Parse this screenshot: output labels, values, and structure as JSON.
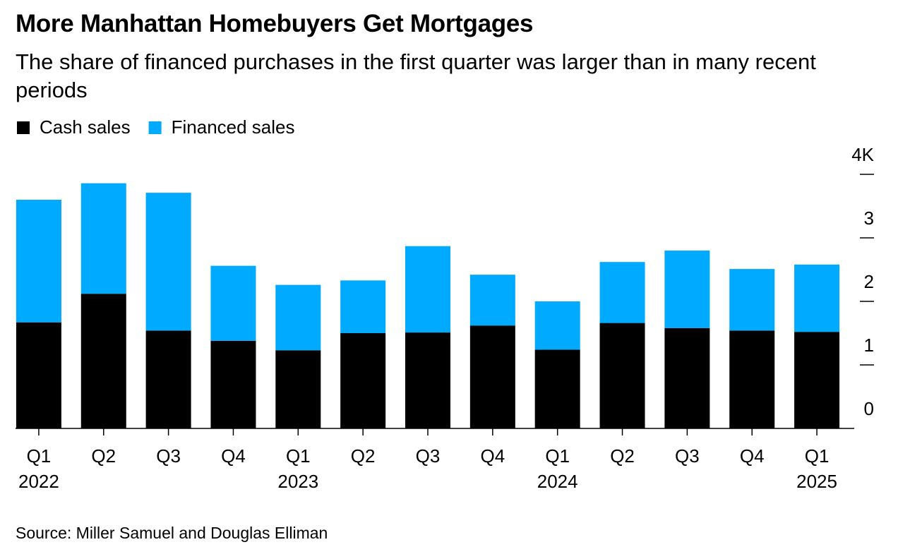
{
  "chart_data": {
    "type": "stacked_bar",
    "title": "More Manhattan Homebuyers Get Mortgages",
    "subtitle": "The share of financed purchases in the first quarter was larger than in many recent periods",
    "source": "Source: Miller Samuel and Douglas Elliman",
    "categories": [
      "Q1",
      "Q2",
      "Q3",
      "Q4",
      "Q1",
      "Q2",
      "Q3",
      "Q4",
      "Q1",
      "Q2",
      "Q3",
      "Q4",
      "Q1"
    ],
    "years": [
      "2022",
      null,
      null,
      null,
      "2023",
      null,
      null,
      null,
      "2024",
      null,
      null,
      null,
      "2025"
    ],
    "series": [
      {
        "name": "Cash sales",
        "color": "#000000",
        "values": [
          1.67,
          2.12,
          1.54,
          1.38,
          1.23,
          1.5,
          1.51,
          1.62,
          1.24,
          1.66,
          1.58,
          1.54,
          1.52
        ]
      },
      {
        "name": "Financed sales",
        "color": "#00aaff",
        "values": [
          1.93,
          1.74,
          2.17,
          1.18,
          1.03,
          0.83,
          1.36,
          0.8,
          0.76,
          0.96,
          1.22,
          0.97,
          1.06
        ]
      }
    ],
    "ylim": [
      0,
      4.3
    ],
    "yticks": [
      0,
      1,
      2,
      3,
      {
        "value": 4,
        "label": "4K"
      }
    ]
  }
}
